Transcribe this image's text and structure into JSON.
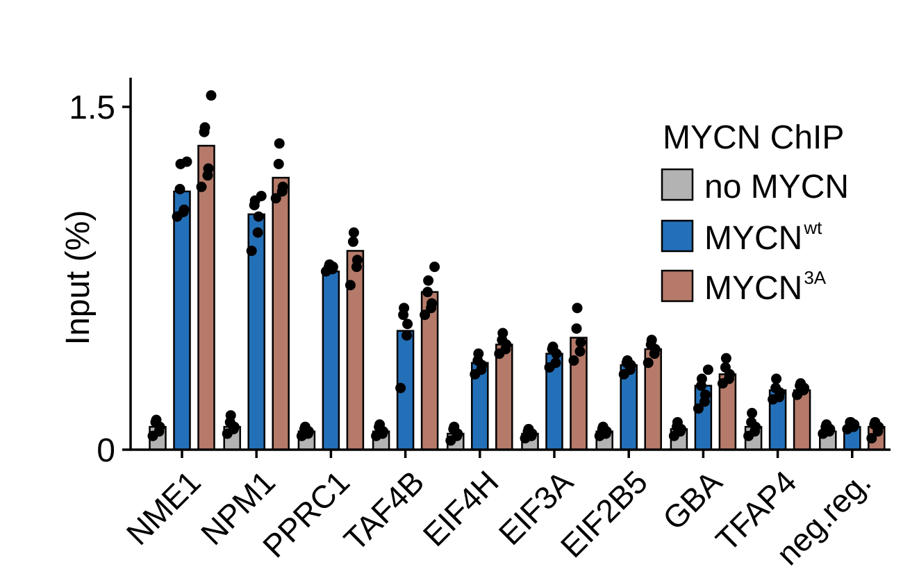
{
  "chart_data": {
    "type": "bar",
    "title": "",
    "xlabel": "",
    "ylabel": "Input (%)",
    "ylim": [
      0,
      1.65
    ],
    "yticks": [
      0,
      1.5
    ],
    "ytick_labels": [
      "0",
      "1.5"
    ],
    "categories": [
      "NME1",
      "NPM1",
      "PPRC1",
      "TAF4B",
      "EIF4H",
      "EIF3A",
      "EIF2B5",
      "GBA",
      "TFAP4",
      "neg.reg."
    ],
    "legend": {
      "title": "MYCN ChIP",
      "placement": "top-right",
      "entries": [
        {
          "base": "no MYCN",
          "sup": ""
        },
        {
          "base": "MYCN",
          "sup": "wt"
        },
        {
          "base": "MYCN",
          "sup": "3A"
        }
      ]
    },
    "series": [
      {
        "name": "no MYCN",
        "color": "#b3b3b3",
        "values": [
          0.1,
          0.1,
          0.08,
          0.08,
          0.07,
          0.07,
          0.08,
          0.09,
          0.1,
          0.08
        ],
        "points": [
          [
            0.06,
            0.08,
            0.1,
            0.12,
            0.13
          ],
          [
            0.07,
            0.09,
            0.1,
            0.12,
            0.15
          ],
          [
            0.06,
            0.07,
            0.08,
            0.09,
            0.1
          ],
          [
            0.06,
            0.07,
            0.08,
            0.1,
            0.11
          ],
          [
            0.04,
            0.06,
            0.07,
            0.09,
            0.1
          ],
          [
            0.05,
            0.06,
            0.07,
            0.08,
            0.09
          ],
          [
            0.06,
            0.07,
            0.08,
            0.09,
            0.1
          ],
          [
            0.06,
            0.08,
            0.09,
            0.1,
            0.12
          ],
          [
            0.06,
            0.08,
            0.1,
            0.12,
            0.16
          ],
          [
            0.07,
            0.08,
            0.09,
            0.1,
            0.11
          ]
        ]
      },
      {
        "name": "MYCN wt",
        "color": "#2470b8",
        "values": [
          1.13,
          1.03,
          0.78,
          0.52,
          0.38,
          0.42,
          0.37,
          0.28,
          0.26,
          0.1
        ],
        "points": [
          [
            1.02,
            1.04,
            1.05,
            1.14,
            1.25,
            1.26
          ],
          [
            0.87,
            0.95,
            1.02,
            1.07,
            1.09,
            1.11
          ],
          [
            0.78,
            0.79,
            0.8,
            0.8,
            0.81
          ],
          [
            0.27,
            0.5,
            0.55,
            0.59,
            0.62
          ],
          [
            0.33,
            0.35,
            0.37,
            0.39,
            0.42
          ],
          [
            0.36,
            0.38,
            0.42,
            0.44,
            0.45
          ],
          [
            0.33,
            0.35,
            0.37,
            0.38,
            0.39
          ],
          [
            0.18,
            0.21,
            0.24,
            0.28,
            0.31,
            0.35
          ],
          [
            0.22,
            0.23,
            0.25,
            0.27,
            0.31
          ],
          [
            0.09,
            0.1,
            0.11,
            0.12,
            0.12
          ]
        ]
      },
      {
        "name": "MYCN 3A",
        "color": "#b57a69",
        "values": [
          1.33,
          1.19,
          0.87,
          0.69,
          0.46,
          0.49,
          0.44,
          0.33,
          0.26,
          0.1
        ],
        "points": [
          [
            1.15,
            1.2,
            1.23,
            1.39,
            1.41,
            1.55
          ],
          [
            1.1,
            1.13,
            1.15,
            1.25,
            1.34
          ],
          [
            0.72,
            0.8,
            0.83,
            0.91,
            0.95
          ],
          [
            0.59,
            0.62,
            0.64,
            0.69,
            0.74,
            0.8
          ],
          [
            0.42,
            0.44,
            0.46,
            0.48,
            0.51
          ],
          [
            0.39,
            0.43,
            0.47,
            0.53,
            0.62
          ],
          [
            0.38,
            0.42,
            0.44,
            0.46,
            0.48
          ],
          [
            0.29,
            0.31,
            0.33,
            0.36,
            0.4
          ],
          [
            0.24,
            0.26,
            0.27,
            0.28,
            0.29
          ],
          [
            0.05,
            0.08,
            0.1,
            0.11,
            0.12
          ]
        ]
      }
    ]
  }
}
